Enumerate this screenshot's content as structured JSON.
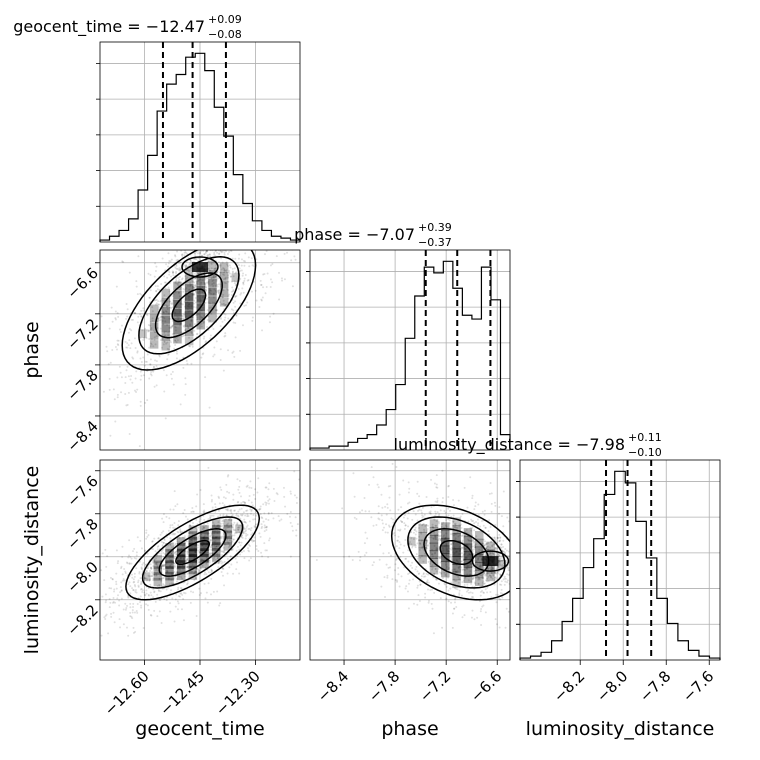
{
  "chart_data": {
    "type": "corner",
    "grid": true,
    "parameters": [
      {
        "name": "geocent_time",
        "range": [
          -12.72,
          -12.18
        ],
        "ticks": [
          -12.6,
          -12.45,
          -12.3
        ],
        "tick_labels": [
          "−12.60",
          "−12.45",
          "−12.30"
        ],
        "median": -12.47,
        "err_plus": 0.09,
        "err_minus": 0.08,
        "title_main": "geocent_time = −12.47",
        "title_sup": "+0.09",
        "title_sub": "−0.08",
        "quantiles": [
          -12.55,
          -12.47,
          -12.38
        ],
        "hist_values": [
          1,
          3,
          6,
          12,
          27,
          45,
          68,
          82,
          87,
          96,
          98,
          89,
          70,
          55,
          35,
          20,
          11,
          6,
          3,
          2,
          1
        ]
      },
      {
        "name": "phase",
        "range": [
          -8.8,
          -6.45
        ],
        "ticks": [
          -8.4,
          -7.8,
          -7.2,
          -6.6
        ],
        "tick_labels": [
          "−8.4",
          "−7.8",
          "−7.2",
          "−6.6"
        ],
        "median": -7.07,
        "err_plus": 0.39,
        "err_minus": 0.37,
        "title_main": "phase = −7.07",
        "title_sup": "+0.39",
        "title_sub": "−0.37",
        "quantiles": [
          -7.44,
          -7.07,
          -6.68
        ],
        "hist_values": [
          1,
          1,
          2,
          2,
          4,
          6,
          8,
          13,
          21,
          34,
          58,
          80,
          95,
          92,
          98,
          84,
          70,
          68,
          95,
          78,
          8
        ]
      },
      {
        "name": "luminosity_distance",
        "range": [
          -8.48,
          -7.55
        ],
        "ticks": [
          -8.2,
          -8.0,
          -7.8,
          -7.6
        ],
        "tick_labels": [
          "−8.2",
          "−8.0",
          "−7.8",
          "−7.6"
        ],
        "median": -7.98,
        "err_plus": 0.11,
        "err_minus": 0.1,
        "title_main": "luminosity_distance = −7.98",
        "title_sup": "+0.11",
        "title_sub": "−0.10",
        "quantiles": [
          -8.08,
          -7.98,
          -7.87
        ],
        "hist_values": [
          1,
          2,
          4,
          10,
          20,
          32,
          48,
          63,
          86,
          98,
          92,
          72,
          53,
          32,
          19,
          10,
          5,
          2,
          1
        ]
      }
    ],
    "pairs": [
      {
        "x": "geocent_time",
        "y": "phase",
        "mean": [
          -12.48,
          -7.1
        ],
        "sd": [
          0.09,
          0.38
        ],
        "rho": 0.62,
        "extra_mode": [
          -12.45,
          -6.65
        ]
      },
      {
        "x": "geocent_time",
        "y": "luminosity_distance",
        "mean": [
          -12.47,
          -7.98
        ],
        "sd": [
          0.09,
          0.11
        ],
        "rho": 0.72
      },
      {
        "x": "phase",
        "y": "luminosity_distance",
        "mean": [
          -7.08,
          -7.98
        ],
        "sd": [
          0.38,
          0.11
        ],
        "rho": -0.35,
        "extra_mode": [
          -6.68,
          -8.02
        ]
      }
    ]
  }
}
